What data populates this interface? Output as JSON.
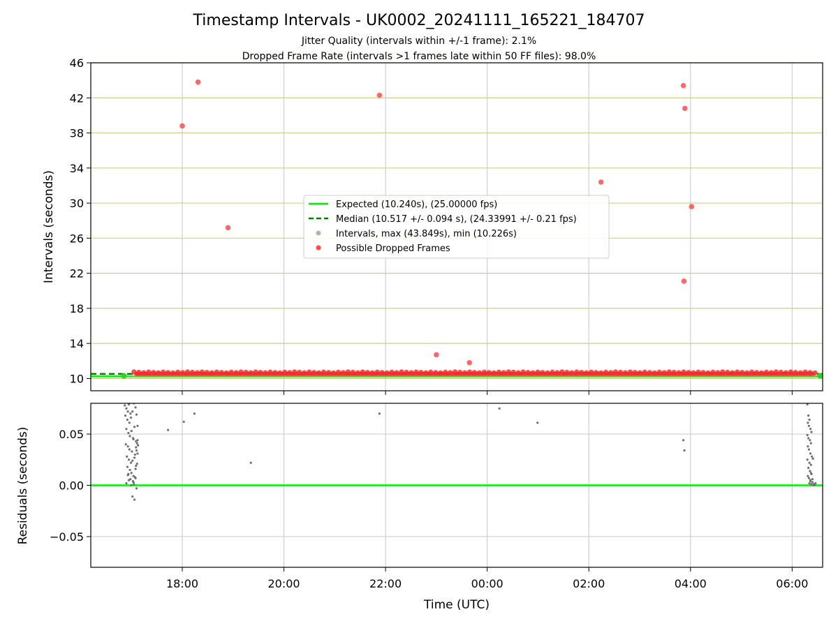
{
  "chart_data": {
    "title": "Timestamp Intervals - UK0002_20241111_165221_184707",
    "subtitle_1": "Jitter Quality (intervals within +/-1 frame): 2.1%",
    "subtitle_2": "Dropped Frame Rate (intervals >1 frames late within 50 FF files): 98.0%",
    "xlabel": "Time (UTC)",
    "x_tick_labels": [
      "18:00",
      "20:00",
      "22:00",
      "00:00",
      "02:00",
      "04:00",
      "06:00"
    ],
    "x_tick_hours": [
      18,
      20,
      22,
      24,
      26,
      28,
      30
    ],
    "xlim_hours": [
      16.2,
      30.6
    ],
    "panels": [
      {
        "type": "scatter",
        "ylabel": "Intervals (seconds)",
        "ylim": [
          8.6,
          46
        ],
        "y_ticks": [
          10,
          14,
          18,
          22,
          26,
          30,
          34,
          38,
          42,
          46
        ],
        "y_tick_labels": [
          "10",
          "14",
          "18",
          "22",
          "26",
          "30",
          "34",
          "38",
          "42",
          "46"
        ],
        "grid": true,
        "legend_position": "center",
        "legend": [
          "Expected (10.240s), (25.00000 fps)",
          "Median (10.517 +/- 0.094 s), (24.33991 +/- 0.21 fps)",
          "Intervals, max (43.849s), min (10.226s)",
          "Possible Dropped Frames"
        ],
        "series": [
          {
            "name": "Expected (10.240s), (25.00000 fps)",
            "kind": "hline",
            "y": 10.24,
            "color": "#00ee00"
          },
          {
            "name": "Median (10.517 +/- 0.094 s), (24.33991 +/- 0.21 fps)",
            "kind": "dashed-hline",
            "y": 10.517,
            "color": "#007a00"
          },
          {
            "name": "Intervals, max (43.849s), min (10.226s)",
            "kind": "band",
            "x_range": [
              16.9,
              30.5
            ],
            "y_range": [
              10.23,
              10.35
            ],
            "color": "#7fbf7f"
          },
          {
            "name": "Possible Dropped Frames",
            "kind": "band",
            "x_range": [
              17.05,
              30.45
            ],
            "y_range": [
              10.3,
              10.75
            ],
            "color": "#ff2a2a"
          },
          {
            "name": "Possible Dropped Frames",
            "kind": "points",
            "color": "#ff4d4d",
            "x": [
              18.0,
              18.31,
              18.9,
              21.88,
              23.0,
              23.65,
              26.24,
              27.86,
              27.89,
              27.87,
              28.02
            ],
            "y": [
              38.8,
              43.8,
              27.2,
              42.3,
              12.7,
              11.8,
              32.4,
              43.4,
              40.8,
              21.1,
              29.6
            ]
          }
        ]
      },
      {
        "type": "scatter",
        "ylabel": "Residuals (seconds)",
        "ylim": [
          -0.08,
          0.08
        ],
        "y_ticks": [
          -0.05,
          0.0,
          0.05
        ],
        "y_tick_labels": [
          "−0.05",
          "0.00",
          "0.05"
        ],
        "grid": true,
        "series": [
          {
            "name": "zero",
            "kind": "hline",
            "y": 0.0,
            "color": "#00ee00"
          },
          {
            "name": "residuals",
            "kind": "points",
            "color": "#707070",
            "x": [
              16.87,
              16.9,
              16.93,
              16.95,
              16.98,
              16.88,
              16.92,
              16.96,
              16.99,
              17.02,
              17.05,
              17.08,
              17.1,
              17.12,
              16.9,
              16.94,
              16.97,
              17.0,
              17.03,
              17.06,
              17.09,
              17.11,
              17.13,
              16.89,
              16.93,
              16.96,
              17.01,
              17.04,
              17.07,
              17.1,
              16.91,
              16.95,
              16.99,
              17.02,
              17.06,
              17.09,
              17.12,
              16.92,
              16.97,
              17.0,
              17.04,
              17.08,
              17.11,
              16.94,
              16.98,
              17.03,
              17.07,
              16.9,
              17.05,
              17.1,
              16.95,
              17.0,
              17.08,
              17.12,
              17.02,
              17.06,
              16.93,
              17.09,
              17.04,
              17.72,
              18.03,
              18.24,
              19.35,
              21.88,
              24.24,
              24.99,
              27.86,
              27.88,
              30.3,
              30.32,
              30.34,
              30.31,
              30.33,
              30.36,
              30.38,
              30.3,
              30.32,
              30.35,
              30.37,
              30.31,
              30.33,
              30.36,
              30.39,
              30.3,
              30.34,
              30.37,
              30.32,
              30.35,
              30.38,
              30.31,
              30.33,
              30.36,
              30.4,
              30.34,
              30.38,
              30.42,
              30.36,
              30.4,
              30.43,
              30.37,
              30.41,
              30.44,
              30.46
            ],
            "y": [
              0.078,
              0.075,
              0.072,
              0.079,
              0.07,
              0.068,
              0.064,
              0.061,
              0.066,
              0.072,
              0.08,
              0.076,
              0.069,
              0.058,
              0.055,
              0.051,
              0.048,
              0.053,
              0.046,
              0.057,
              0.043,
              0.041,
              0.039,
              0.04,
              0.038,
              0.035,
              0.033,
              0.045,
              0.03,
              0.034,
              0.028,
              0.025,
              0.022,
              0.024,
              0.027,
              0.019,
              0.031,
              0.018,
              0.015,
              0.012,
              0.009,
              0.016,
              0.021,
              0.011,
              0.006,
              0.004,
              0.008,
              0.002,
              0.001,
              -0.003,
              0.005,
              0.0,
              0.007,
              0.044,
              -0.011,
              -0.014,
              0.01,
              0.037,
              0.003,
              0.054,
              0.062,
              0.07,
              0.022,
              0.07,
              0.075,
              0.061,
              0.044,
              0.034,
              0.079,
              0.068,
              0.064,
              0.061,
              0.058,
              0.055,
              0.052,
              0.049,
              0.046,
              0.044,
              0.041,
              0.038,
              0.035,
              0.031,
              0.028,
              0.025,
              0.022,
              0.02,
              0.017,
              0.014,
              0.011,
              0.009,
              0.007,
              0.005,
              0.003,
              0.002,
              0.001,
              0.0,
              0.004,
              0.006,
              0.001,
              0.012,
              0.026,
              0.0,
              0.002
            ]
          }
        ]
      }
    ]
  }
}
